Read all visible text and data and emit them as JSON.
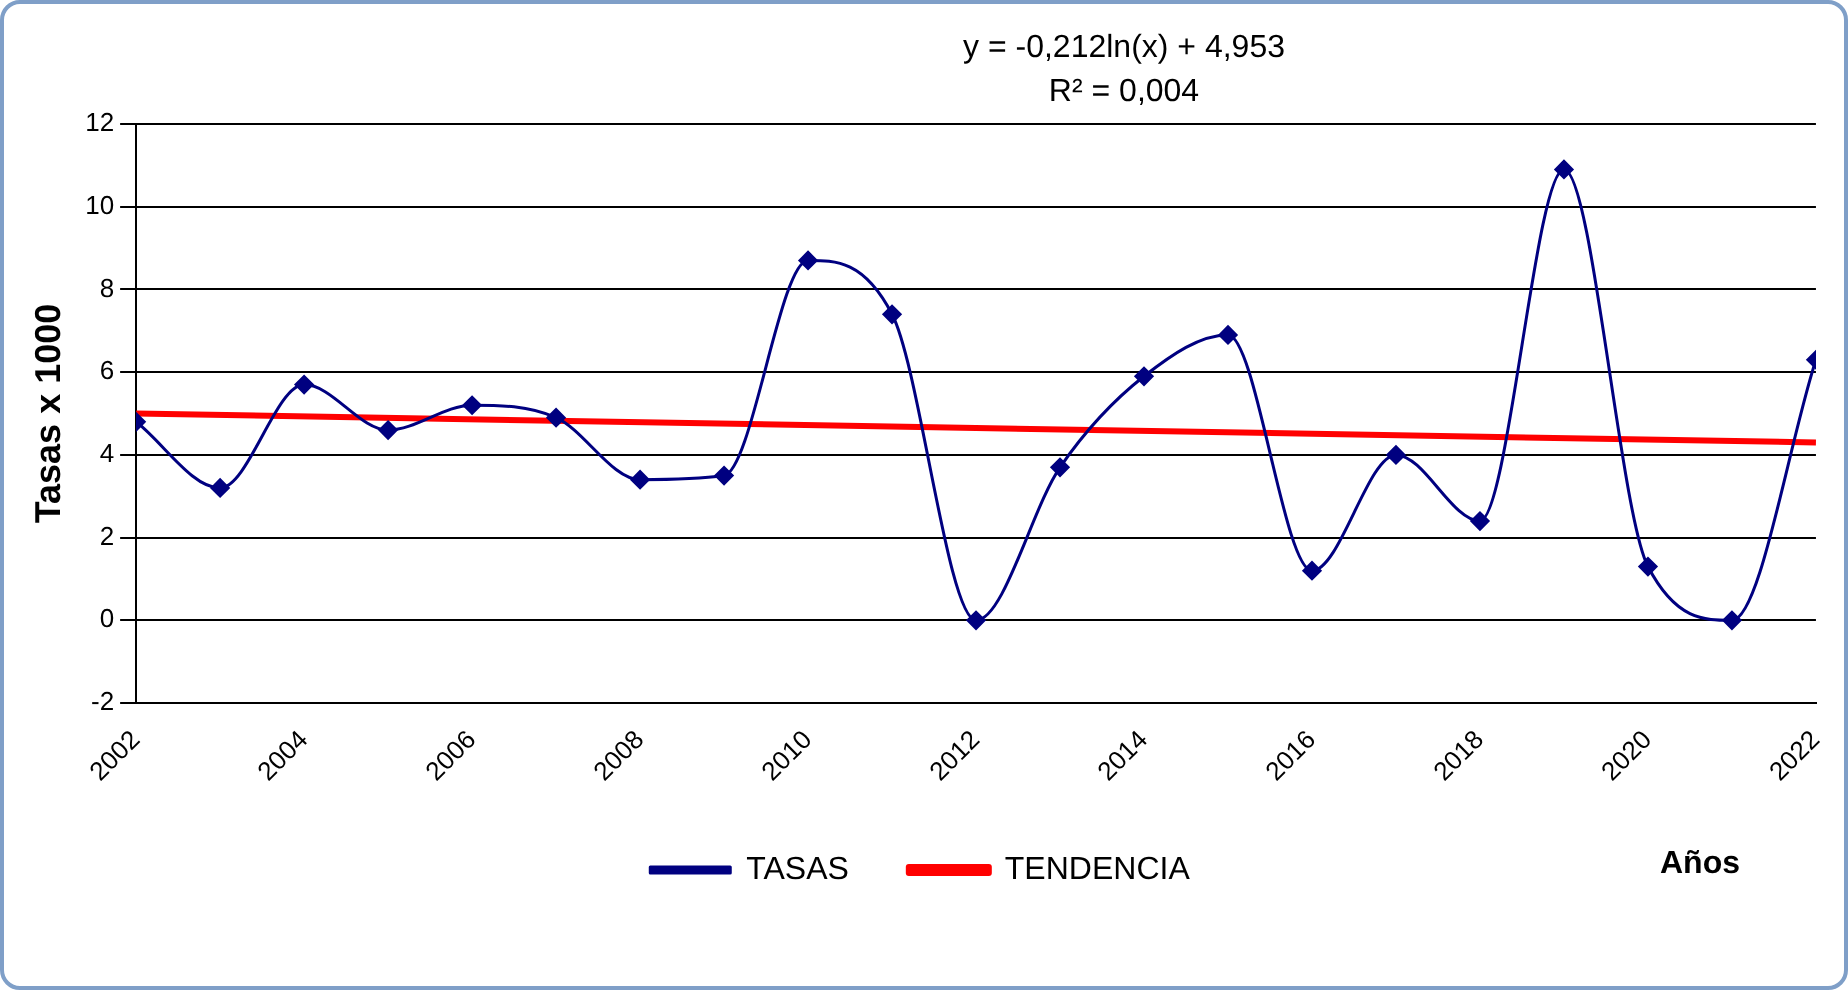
{
  "chart_data": {
    "type": "line",
    "ylabel": "Tasas x 1000",
    "xlabel": "Años",
    "annotations": [
      "y = -0,212ln(x) + 4,953",
      "R² = 0,004"
    ],
    "x": [
      2002,
      2003,
      2004,
      2005,
      2006,
      2007,
      2008,
      2009,
      2010,
      2011,
      2012,
      2013,
      2014,
      2015,
      2016,
      2017,
      2018,
      2019,
      2020,
      2021,
      2022
    ],
    "series": [
      {
        "name": "TASAS",
        "color": "#000080",
        "marker": "diamond",
        "values": [
          4.8,
          3.2,
          5.7,
          4.6,
          5.2,
          4.9,
          3.4,
          3.5,
          8.7,
          7.4,
          0,
          3.7,
          5.9,
          6.9,
          1.2,
          4.0,
          2.4,
          10.9,
          1.3,
          0,
          6.3
        ]
      },
      {
        "name": "TENDENCIA",
        "color": "#ff0000",
        "marker": "none",
        "type": "line",
        "x": [
          2002,
          2022
        ],
        "values": [
          5.0,
          4.3
        ]
      }
    ],
    "xlim": [
      2002,
      2022
    ],
    "xticks": [
      2002,
      2004,
      2006,
      2008,
      2010,
      2012,
      2014,
      2016,
      2018,
      2020,
      2022
    ],
    "ylim": [
      -2,
      12
    ],
    "yticks": [
      -2,
      0,
      2,
      4,
      6,
      8,
      10,
      12
    ],
    "grid": "y",
    "legend": "bottom"
  }
}
